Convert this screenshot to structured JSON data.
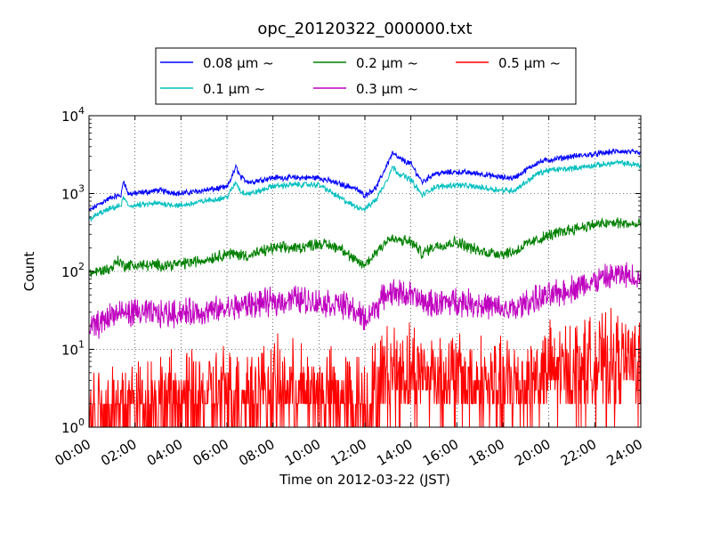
{
  "chart_data": {
    "type": "line",
    "title": "opc_20120322_000000.txt",
    "xlabel": "Time on 2012-03-22 (JST)",
    "ylabel": "Count",
    "x_ticks": [
      "00:00",
      "02:00",
      "04:00",
      "06:00",
      "08:00",
      "10:00",
      "12:00",
      "14:00",
      "16:00",
      "18:00",
      "20:00",
      "22:00",
      "24:00"
    ],
    "x_range_hours": [
      0,
      24
    ],
    "y_scale": "log",
    "ylim": [
      1,
      10000
    ],
    "y_ticks": [
      {
        "base": "10",
        "exp": "0"
      },
      {
        "base": "10",
        "exp": "1"
      },
      {
        "base": "10",
        "exp": "2"
      },
      {
        "base": "10",
        "exp": "3"
      },
      {
        "base": "10",
        "exp": "4"
      }
    ],
    "grid": true,
    "legend_position": "top-center",
    "series": [
      {
        "name": "0.08 μm ~",
        "color": "#0000ff",
        "noise": 0.03,
        "x": [
          0,
          0.5,
          1,
          1.4,
          1.5,
          1.7,
          2,
          3,
          4,
          5,
          6,
          6.4,
          6.6,
          7,
          7.5,
          8,
          9,
          9.5,
          10,
          11,
          11.5,
          12,
          12.5,
          13,
          13.2,
          13.5,
          14,
          14.5,
          15,
          16,
          17,
          18,
          18.5,
          19,
          19.5,
          20,
          21,
          22,
          23,
          23.5,
          24
        ],
        "y": [
          600,
          750,
          900,
          950,
          1500,
          1000,
          1000,
          1100,
          1000,
          1100,
          1200,
          2200,
          1600,
          1400,
          1500,
          1600,
          1600,
          1600,
          1600,
          1300,
          1200,
          950,
          1200,
          2500,
          3300,
          2800,
          2400,
          1400,
          1800,
          1900,
          1800,
          1600,
          1600,
          2000,
          2500,
          2700,
          3000,
          3200,
          3500,
          3400,
          3300
        ]
      },
      {
        "name": "0.1 μm ~",
        "color": "#00bfbf",
        "noise": 0.03,
        "x": [
          0,
          0.5,
          1,
          1.4,
          1.5,
          1.7,
          2,
          3,
          4,
          5,
          6,
          6.4,
          6.6,
          7,
          7.5,
          8,
          9,
          9.5,
          10,
          11,
          11.5,
          12,
          12.5,
          13,
          13.2,
          13.5,
          14,
          14.5,
          15,
          16,
          17,
          18,
          18.5,
          19,
          19.5,
          20,
          21,
          22,
          23,
          23.5,
          24
        ],
        "y": [
          470,
          560,
          650,
          700,
          900,
          700,
          700,
          750,
          700,
          800,
          900,
          1400,
          1050,
          1000,
          1100,
          1250,
          1300,
          1300,
          1300,
          850,
          700,
          630,
          850,
          1600,
          2200,
          1800,
          1500,
          950,
          1200,
          1300,
          1200,
          1100,
          1100,
          1400,
          1800,
          2000,
          2100,
          2300,
          2500,
          2400,
          2300
        ]
      },
      {
        "name": "0.2 μm ~",
        "color": "#008000",
        "noise": 0.06,
        "x": [
          0,
          1,
          1.2,
          1.5,
          2,
          3,
          4,
          5,
          6,
          7,
          8,
          9,
          10,
          11,
          11.5,
          12,
          12.5,
          13,
          14,
          14.5,
          15,
          16,
          17,
          18,
          18.5,
          19,
          20,
          21,
          22,
          23,
          24
        ],
        "y": [
          95,
          110,
          140,
          120,
          120,
          120,
          125,
          140,
          170,
          160,
          200,
          200,
          230,
          200,
          140,
          120,
          180,
          260,
          240,
          170,
          210,
          240,
          180,
          170,
          180,
          220,
          290,
          350,
          400,
          420,
          390
        ]
      },
      {
        "name": "0.3 μm ~",
        "color": "#bf00bf",
        "noise": 0.14,
        "x": [
          0,
          0.5,
          1,
          2,
          3,
          4,
          5,
          6,
          7,
          8,
          9,
          10,
          11,
          11.5,
          12,
          12.5,
          13,
          14,
          14.5,
          15,
          16,
          17,
          18,
          18.5,
          19,
          20,
          21,
          22,
          23,
          24
        ],
        "y": [
          18,
          22,
          28,
          30,
          28,
          30,
          30,
          33,
          38,
          40,
          45,
          40,
          38,
          32,
          24,
          35,
          55,
          50,
          40,
          38,
          42,
          38,
          32,
          32,
          40,
          48,
          60,
          75,
          90,
          85
        ]
      },
      {
        "name": "0.5 μm ~",
        "color": "#ff0000",
        "noise": 0.5,
        "x": [
          0,
          2,
          4,
          6,
          8,
          10,
          12,
          12.5,
          13,
          14,
          16,
          18,
          20,
          22,
          24
        ],
        "y": [
          1.5,
          2,
          2,
          2.5,
          3,
          2.5,
          2,
          3,
          5,
          5,
          4,
          3,
          5,
          6,
          7
        ]
      }
    ]
  }
}
